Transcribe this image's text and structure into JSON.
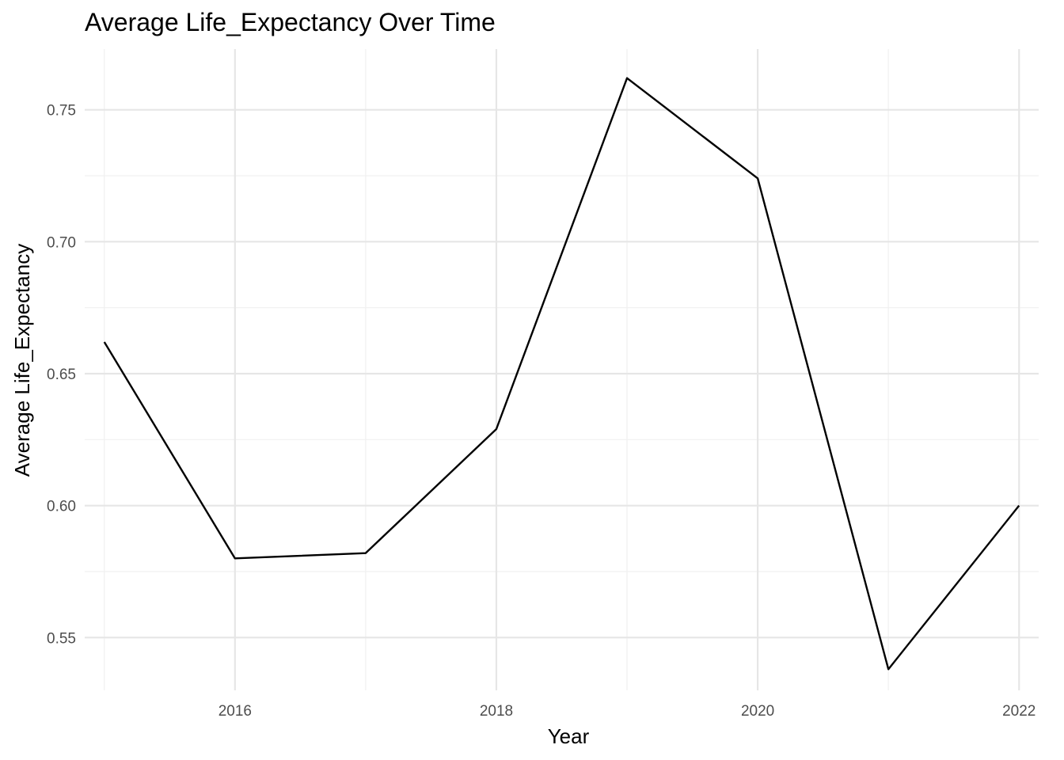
{
  "chart_data": {
    "type": "line",
    "title": "Average Life_Expectancy Over Time",
    "xlabel": "Year",
    "ylabel": "Average Life_Expectancy",
    "x": [
      2015,
      2016,
      2017,
      2018,
      2019,
      2020,
      2021,
      2022
    ],
    "series": [
      {
        "values": [
          0.662,
          0.58,
          0.582,
          0.629,
          0.762,
          0.724,
          0.538,
          0.6
        ]
      }
    ],
    "xlim": [
      2014.85,
      2022.15
    ],
    "ylim": [
      0.53,
      0.773
    ],
    "x_ticks": [
      2016,
      2018,
      2020,
      2022
    ],
    "y_ticks": [
      0.55,
      0.6,
      0.65,
      0.7,
      0.75
    ],
    "y_tick_labels": [
      "0.55",
      "0.60",
      "0.65",
      "0.70",
      "0.75"
    ],
    "grid": true,
    "legend": "none",
    "line_color": "#000000",
    "grid_color": "#e6e6e6"
  }
}
